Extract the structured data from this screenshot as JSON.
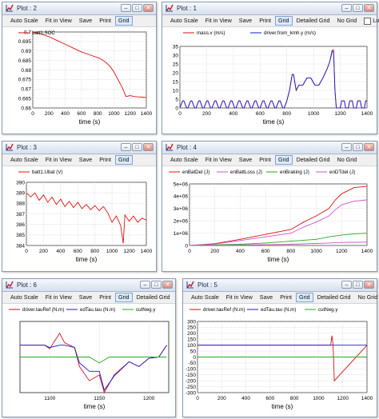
{
  "toolbar": {
    "auto_scale": "Auto Scale",
    "fit_in_view": "Fit in View",
    "save": "Save",
    "print": "Print",
    "grid": "Grid",
    "detailed_grid": "Detailed Grid",
    "no_grid": "No Grid",
    "log_x": "Log X"
  },
  "colors": {
    "red": "#dd1111",
    "blue": "#1a1acc",
    "green": "#22aa22",
    "violet": "#cc55cc"
  },
  "windows": [
    {
      "id": "plot2",
      "title": "Plot : 2"
    },
    {
      "id": "plot1",
      "title": "Plot : 1"
    },
    {
      "id": "plot3",
      "title": "Plot : 3"
    },
    {
      "id": "plot4",
      "title": "Plot : 4"
    },
    {
      "id": "plot6",
      "title": "Plot : 6"
    },
    {
      "id": "plot5",
      "title": "Plot : 5"
    }
  ],
  "chart_data": [
    {
      "type": "line",
      "window": "plot2",
      "xlabel": "time (s)",
      "xlim": [
        0,
        1400
      ],
      "ylim": [
        0.66,
        0.7
      ],
      "xticks": [
        "0",
        "200",
        "400",
        "600",
        "800",
        "1000",
        "1200",
        "1400"
      ],
      "yticks": [
        "0.7",
        "0.695",
        "0.69",
        "0.685",
        "0.68",
        "0.675",
        "0.67",
        "0.665",
        "0.66"
      ],
      "series": [
        {
          "name": "batt1.SOC",
          "x": [
            0,
            100,
            200,
            300,
            400,
            500,
            600,
            700,
            800,
            850,
            900,
            950,
            1000,
            1050,
            1100,
            1150,
            1200,
            1250,
            1300,
            1350,
            1400
          ],
          "y": [
            0.7,
            0.699,
            0.6975,
            0.6955,
            0.6935,
            0.6915,
            0.6895,
            0.688,
            0.6865,
            0.6855,
            0.684,
            0.682,
            0.679,
            0.675,
            0.671,
            0.666,
            0.6665,
            0.666,
            0.6658,
            0.6657,
            0.6655
          ]
        }
      ]
    },
    {
      "type": "line",
      "window": "plot1",
      "xlabel": "time (s)",
      "xlim": [
        0,
        1400
      ],
      "ylim": [
        0,
        35
      ],
      "xticks": [
        "0",
        "200",
        "400",
        "600",
        "800",
        "1000",
        "1200",
        "1400"
      ],
      "yticks": [
        "0",
        "5",
        "10",
        "15",
        "20",
        "25",
        "30",
        "35"
      ],
      "series": [
        {
          "name": "mass.v (m/s)",
          "x": [
            0,
            20,
            30,
            50,
            60,
            80,
            90,
            110,
            120,
            140,
            150,
            170,
            180,
            200,
            210,
            230,
            240,
            260,
            270,
            290,
            300,
            320,
            330,
            350,
            360,
            380,
            390,
            410,
            420,
            440,
            450,
            470,
            480,
            500,
            510,
            530,
            540,
            560,
            570,
            590,
            600,
            620,
            630,
            650,
            660,
            680,
            690,
            710,
            720,
            740,
            750,
            770,
            780,
            800,
            820,
            840,
            850,
            870,
            890,
            920,
            950,
            980,
            1010,
            1040,
            1070,
            1100,
            1120,
            1140,
            1150,
            1160,
            1170,
            1180,
            1200,
            1210,
            1230,
            1240,
            1260,
            1270,
            1290,
            1300,
            1320,
            1330,
            1350,
            1360,
            1380,
            1390,
            1400
          ],
          "y": [
            0,
            4,
            4,
            0,
            0,
            4,
            4,
            0,
            0,
            4,
            4,
            0,
            0,
            4,
            4,
            0,
            0,
            4,
            4,
            0,
            0,
            4,
            4,
            0,
            0,
            4,
            4,
            0,
            0,
            4,
            4,
            0,
            0,
            4,
            4,
            0,
            0,
            4,
            4,
            0,
            0,
            4,
            4,
            0,
            0,
            4,
            4,
            0,
            0,
            4,
            4,
            0,
            0,
            4,
            10,
            19,
            19,
            10,
            13,
            13,
            17,
            17,
            13,
            13,
            17,
            22,
            26,
            33,
            33,
            10,
            0,
            0,
            0,
            4,
            4,
            0,
            0,
            4,
            4,
            0,
            0,
            4,
            4,
            0,
            0,
            4,
            4
          ]
        },
        {
          "name": "driver.from_kmh.y (m/s)",
          "x": [
            0,
            20,
            30,
            50,
            60,
            80,
            90,
            110,
            120,
            140,
            150,
            170,
            180,
            200,
            210,
            230,
            240,
            260,
            270,
            290,
            300,
            320,
            330,
            350,
            360,
            380,
            390,
            410,
            420,
            440,
            450,
            470,
            480,
            500,
            510,
            530,
            540,
            560,
            570,
            590,
            600,
            620,
            630,
            650,
            660,
            680,
            690,
            710,
            720,
            740,
            750,
            770,
            780,
            800,
            820,
            840,
            850,
            870,
            890,
            920,
            950,
            980,
            1010,
            1040,
            1070,
            1100,
            1120,
            1140,
            1150,
            1160,
            1170,
            1180,
            1200,
            1210,
            1230,
            1240,
            1260,
            1270,
            1290,
            1300,
            1320,
            1330,
            1350,
            1360,
            1380,
            1390,
            1400
          ],
          "y": [
            0,
            4,
            4,
            0,
            0,
            4,
            4,
            0,
            0,
            4,
            4,
            0,
            0,
            4,
            4,
            0,
            0,
            4,
            4,
            0,
            0,
            4,
            4,
            0,
            0,
            4,
            4,
            0,
            0,
            4,
            4,
            0,
            0,
            4,
            4,
            0,
            0,
            4,
            4,
            0,
            0,
            4,
            4,
            0,
            0,
            4,
            4,
            0,
            0,
            4,
            4,
            0,
            0,
            4,
            10,
            19,
            19,
            10,
            13,
            13,
            17,
            17,
            13,
            13,
            17,
            22,
            26,
            32,
            32,
            10,
            0,
            0,
            0,
            4,
            4,
            0,
            0,
            4,
            4,
            0,
            0,
            4,
            4,
            0,
            0,
            4,
            4
          ]
        }
      ]
    },
    {
      "type": "line",
      "window": "plot3",
      "xlabel": "time (s)",
      "xlim": [
        0,
        1400
      ],
      "ylim": [
        384,
        390
      ],
      "xticks": [
        "0",
        "200",
        "400",
        "600",
        "800",
        "1000",
        "1200",
        "1400"
      ],
      "yticks": [
        "390",
        "389",
        "388",
        "387",
        "386",
        "385",
        "384"
      ],
      "series": [
        {
          "name": "batt1.Ubat (V)",
          "x": [
            0,
            50,
            100,
            150,
            200,
            250,
            300,
            350,
            400,
            450,
            500,
            550,
            600,
            650,
            700,
            750,
            800,
            850,
            900,
            950,
            1000,
            1050,
            1100,
            1130,
            1150,
            1200,
            1250,
            1300,
            1350,
            1400
          ],
          "y": [
            389,
            388.6,
            389,
            388.3,
            388.8,
            388.1,
            388.6,
            387.9,
            388.4,
            387.7,
            388.2,
            387.6,
            388.1,
            387.5,
            387.9,
            387.4,
            387.8,
            387.3,
            387.7,
            387.1,
            386.2,
            386.8,
            385.9,
            384.2,
            386.9,
            386.3,
            386.8,
            386.2,
            386.6,
            386.4
          ]
        }
      ]
    },
    {
      "type": "line",
      "window": "plot4",
      "xlabel": "time (s)",
      "xlim": [
        0,
        1400
      ],
      "ylim": [
        0,
        5000000
      ],
      "xticks": [
        "0",
        "200",
        "400",
        "600",
        "800",
        "1000",
        "1200",
        "1400"
      ],
      "yticks": [
        "5e+06",
        "4e+06",
        "3e+06",
        "2e+06",
        "1e+06",
        "0"
      ],
      "series": [
        {
          "name": "enBatDel (J)",
          "x": [
            0,
            200,
            400,
            600,
            800,
            900,
            1000,
            1100,
            1150,
            1200,
            1300,
            1400
          ],
          "y": [
            0,
            150000,
            500000,
            900000,
            1300000,
            1900000,
            2400000,
            3000000,
            3700000,
            4200000,
            4700000,
            4800000
          ]
        },
        {
          "name": "enBattLoss (J)",
          "x": [
            0,
            200,
            400,
            600,
            800,
            900,
            1000,
            1100,
            1200,
            1300,
            1400
          ],
          "y": [
            0,
            20000,
            40000,
            70000,
            100000,
            130000,
            160000,
            200000,
            250000,
            260000,
            270000
          ]
        },
        {
          "name": "enBraking (J)",
          "x": [
            0,
            200,
            400,
            600,
            800,
            1000,
            1100,
            1200,
            1300,
            1400
          ],
          "y": [
            0,
            50000,
            100000,
            200000,
            350000,
            500000,
            700000,
            850000,
            950000,
            1000000
          ]
        },
        {
          "name": "enDTdel (J)",
          "x": [
            0,
            200,
            400,
            600,
            800,
            900,
            1000,
            1100,
            1150,
            1200,
            1300,
            1400
          ],
          "y": [
            0,
            120000,
            400000,
            700000,
            1000000,
            1500000,
            1900000,
            2400000,
            2900000,
            3300000,
            3600000,
            3700000
          ]
        }
      ]
    },
    {
      "type": "line",
      "window": "plot6",
      "xlabel": "time (s)",
      "xlim": [
        1070,
        1220
      ],
      "ylim": [
        -300,
        300
      ],
      "xticks": [
        "1100",
        "1150",
        "1200"
      ],
      "series": [
        {
          "name": "driver.tauRef (N.m)",
          "x": [
            1070,
            1085,
            1095,
            1100,
            1110,
            1115,
            1125,
            1130,
            1140,
            1150,
            1155,
            1165,
            1180,
            1190,
            1200,
            1210,
            1218
          ],
          "y": [
            100,
            100,
            100,
            70,
            200,
            120,
            80,
            -80,
            -200,
            -150,
            -300,
            -150,
            -40,
            -80,
            -10,
            0,
            100
          ]
        },
        {
          "name": "edTau.tau (N.m)",
          "x": [
            1070,
            1085,
            1095,
            1100,
            1110,
            1115,
            1125,
            1130,
            1140,
            1150,
            1155,
            1165,
            1180,
            1190,
            1200,
            1210,
            1218
          ],
          "y": [
            100,
            100,
            100,
            80,
            100,
            100,
            80,
            -50,
            -120,
            -120,
            -280,
            -160,
            -40,
            -80,
            -10,
            0,
            100
          ]
        },
        {
          "name": "cutNeg.y",
          "x": [
            1070,
            1140,
            1150,
            1160,
            1218
          ],
          "y": [
            0,
            0,
            -50,
            0,
            0
          ]
        }
      ]
    },
    {
      "type": "line",
      "window": "plot5",
      "xlabel": "time (s)",
      "xlim": [
        0,
        1400
      ],
      "ylim": [
        -300,
        300
      ],
      "xticks": [
        "0",
        "200",
        "400",
        "600",
        "800",
        "1000",
        "1200",
        "1400"
      ],
      "yticks": [
        "300",
        "250",
        "200",
        "150",
        "100",
        "50",
        "0",
        "-50",
        "-100",
        "-150",
        "-200",
        "-250",
        "-300"
      ],
      "series": [
        {
          "name": "driver.tauRef (N.m)",
          "x": [
            0,
            1100,
            1110,
            1120,
            1130,
            1400
          ],
          "y": [
            100,
            100,
            180,
            100,
            -200,
            100
          ]
        },
        {
          "name": "edTau.tau (N.m)",
          "x": [
            0,
            1400
          ],
          "y": [
            100,
            100
          ]
        },
        {
          "name": "cutNeg.y",
          "x": [
            0,
            1400
          ],
          "y": [
            0,
            0
          ]
        }
      ]
    }
  ]
}
